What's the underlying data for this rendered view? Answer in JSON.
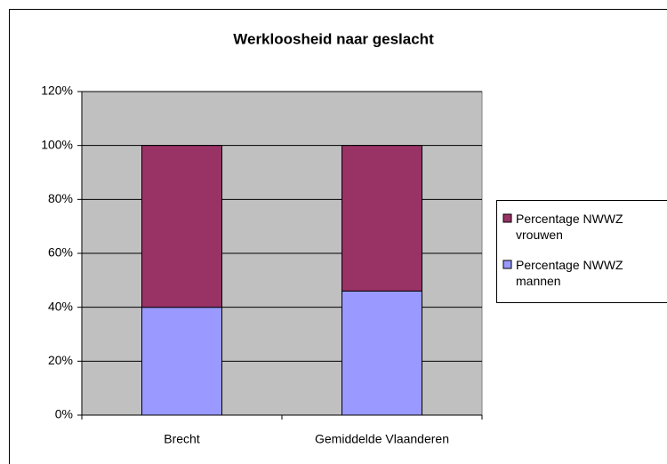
{
  "chart_data": {
    "type": "stacked_bar",
    "title": "Werkloosheid naar geslacht",
    "categories": [
      "Brecht",
      "Gemiddelde Vlaanderen"
    ],
    "series": [
      {
        "name": "Percentage NWWZ mannen",
        "color": "#9999ff",
        "values": [
          40,
          46
        ]
      },
      {
        "name": "Percentage NWWZ vrouwen",
        "color": "#993366",
        "values": [
          60,
          54
        ]
      }
    ],
    "ylim": [
      0,
      120
    ],
    "yticks": [
      {
        "value": 0,
        "label": "0%"
      },
      {
        "value": 20,
        "label": "20%"
      },
      {
        "value": 40,
        "label": "40%"
      },
      {
        "value": 60,
        "label": "60%"
      },
      {
        "value": 80,
        "label": "80%"
      },
      {
        "value": 100,
        "label": "100%"
      },
      {
        "value": 120,
        "label": "120%"
      }
    ],
    "grid": true,
    "legend": "right"
  }
}
